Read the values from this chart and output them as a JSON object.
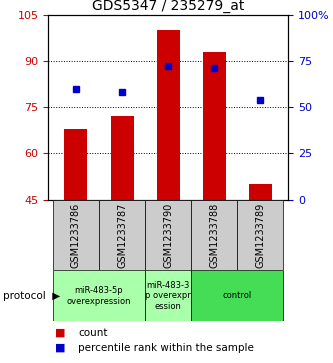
{
  "title": "GDS5347 / 235279_at",
  "samples": [
    "GSM1233786",
    "GSM1233787",
    "GSM1233790",
    "GSM1233788",
    "GSM1233789"
  ],
  "counts": [
    68,
    72,
    100,
    93,
    50
  ],
  "percentiles": [
    60,
    58,
    72,
    71,
    54
  ],
  "ylim_left": [
    45,
    105
  ],
  "ylim_right": [
    0,
    100
  ],
  "yticks_left": [
    45,
    60,
    75,
    90,
    105
  ],
  "yticks_right": [
    0,
    25,
    50,
    75,
    100
  ],
  "ytick_labels_right": [
    "0",
    "25",
    "50",
    "75",
    "100%"
  ],
  "bar_color": "#cc0000",
  "dot_color": "#0000cc",
  "bar_bottom": 45,
  "bg_color": "#ffffff",
  "sample_bg_color": "#cccccc",
  "dotted_yticks": [
    60,
    75,
    90
  ],
  "group_info": [
    {
      "indices": [
        0,
        1
      ],
      "label": "miR-483-5p\noverexpression",
      "color": "#aaffaa"
    },
    {
      "indices": [
        2
      ],
      "label": "miR-483-3\np overexpr\nession",
      "color": "#aaffaa"
    },
    {
      "indices": [
        3,
        4
      ],
      "label": "control",
      "color": "#44dd55"
    }
  ]
}
